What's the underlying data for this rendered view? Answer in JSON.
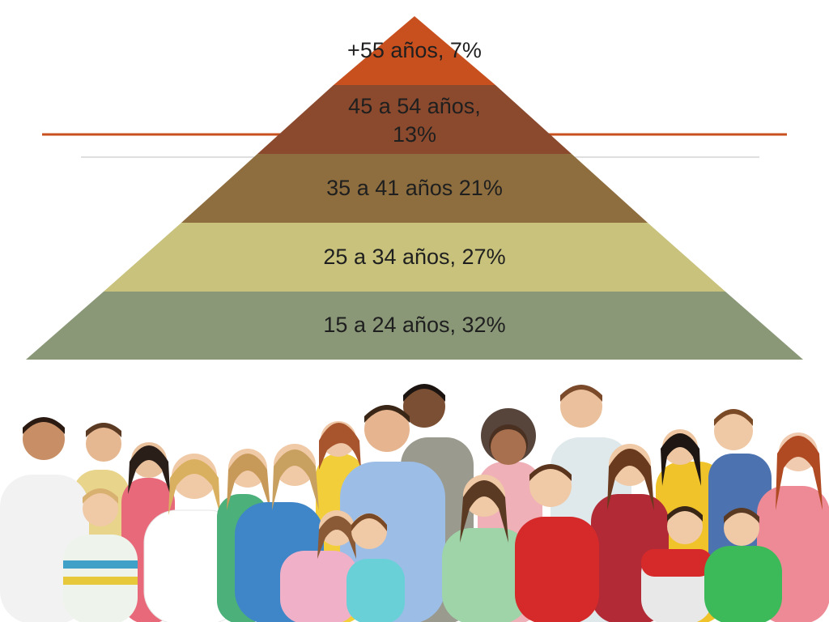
{
  "pyramid": {
    "tiers": [
      {
        "label": "+55 años, 7%",
        "percent": 7,
        "color": "#c8501e"
      },
      {
        "label": "45 a 54 años,\n13%",
        "label_line1": "45 a 54 años,",
        "label_line2": "13%",
        "percent": 13,
        "color": "#8b4a2e"
      },
      {
        "label": "35 a 41 años 21%",
        "percent": 21,
        "color": "#8e6e3e"
      },
      {
        "label": "25 a 34 años, 27%",
        "percent": 27,
        "color": "#c8c27c"
      },
      {
        "label": "15 a 24 años, 32%",
        "percent": 32,
        "color": "#8a9878"
      }
    ]
  },
  "colors": {
    "accent_line": "#c8501e",
    "thin_line": "#bfbfbf"
  },
  "photo": {
    "icon": "group-of-people-photo"
  }
}
